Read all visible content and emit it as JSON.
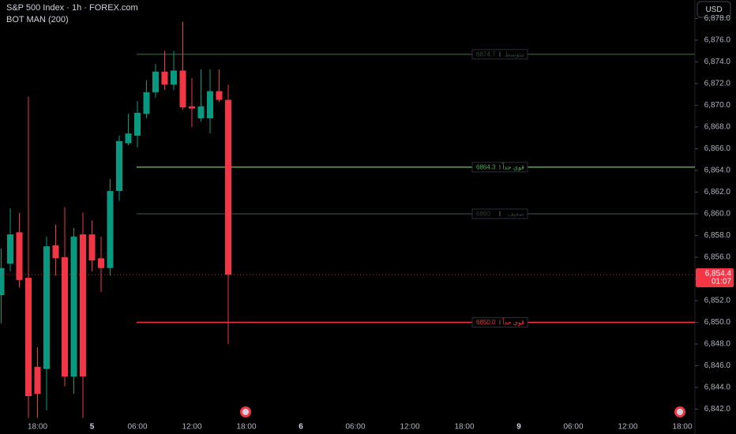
{
  "chart_data": {
    "type": "candlestick",
    "title": "S&P 500 Index · 1h · FOREX.com",
    "subtitle": "BOT MAN (200)",
    "currency": "USD",
    "up_color": "#089981",
    "down_color": "#f23645",
    "categories": [
      null,
      null,
      null,
      null,
      "18:00",
      null,
      null,
      null,
      null,
      null,
      "5",
      null,
      null,
      null,
      null,
      "06:00",
      null,
      null,
      null,
      null,
      null,
      "12:00",
      null,
      null,
      null,
      null,
      null,
      "18:00",
      null,
      null,
      null,
      null,
      null,
      "6",
      null,
      null,
      null,
      null,
      null,
      "06:00",
      null,
      null,
      null,
      null,
      null,
      "12:00",
      null,
      null,
      null,
      null,
      null,
      "18:00",
      null,
      null,
      null,
      null,
      null,
      "9",
      null,
      null,
      null,
      null,
      null,
      "06:00",
      null,
      null,
      null,
      null,
      null,
      "12:00",
      null,
      null,
      null,
      null,
      null,
      "18:00"
    ],
    "open": [
      6852.5,
      6855.4,
      6858.3,
      6854.1,
      6845.9,
      6845.7,
      6857.1,
      6856.0,
      6845.0,
      6858.1,
      6858.1,
      6855.9,
      6855.0,
      6862.1,
      6866.5,
      6867.2,
      6869.2,
      6871.2,
      6873.1,
      6871.9,
      6873.2,
      6869.9,
      6868.8,
      6868.8,
      6871.3,
      6870.5,
      null,
      null,
      null,
      null,
      null,
      null,
      null,
      null,
      null,
      null,
      null,
      null,
      null,
      null,
      null,
      null,
      null,
      null,
      null,
      null,
      null,
      null,
      null,
      null,
      null,
      null,
      null,
      null,
      null,
      null,
      null,
      null,
      null,
      null,
      null,
      null,
      null,
      null,
      null,
      null,
      null,
      null,
      null,
      null,
      null,
      null,
      null,
      null,
      null,
      null
    ],
    "high": [
      6856.8,
      6860.5,
      6860.1,
      6870.8,
      6847.7,
      6857.9,
      6859.0,
      6860.6,
      6858.7,
      6860.1,
      6859.4,
      6857.9,
      6863.2,
      6867.2,
      6869.2,
      6870.4,
      6872.3,
      6873.8,
      6875.0,
      6875.0,
      6877.7,
      6872.5,
      6873.3,
      6873.3,
      6873.3,
      6871.9,
      null,
      null,
      null,
      null,
      null,
      null,
      null,
      null,
      null,
      null,
      null,
      null,
      null,
      null,
      null,
      null,
      null,
      null,
      null,
      null,
      null,
      null,
      null,
      null,
      null,
      null,
      null,
      null,
      null,
      null,
      null,
      null,
      null,
      null,
      null,
      null,
      null,
      null,
      null,
      null,
      null,
      null,
      null,
      null,
      null,
      null,
      null,
      null,
      null,
      null
    ],
    "low": [
      6849.9,
      6854.7,
      6853.2,
      6841.2,
      6841.2,
      6841.9,
      6854.3,
      6844.1,
      6843.4,
      6841.2,
      6854.7,
      6852.8,
      6854.3,
      6861.2,
      6866.3,
      6866.1,
      6868.8,
      6870.7,
      6871.4,
      6871.4,
      6869.6,
      6868.0,
      6868.5,
      6867.4,
      6870.3,
      6848.0,
      null,
      null,
      null,
      null,
      null,
      null,
      null,
      null,
      null,
      null,
      null,
      null,
      null,
      null,
      null,
      null,
      null,
      null,
      null,
      null,
      null,
      null,
      null,
      null,
      null,
      null,
      null,
      null,
      null,
      null,
      null,
      null,
      null,
      null,
      null,
      null,
      null,
      null,
      null,
      null,
      null,
      null,
      null,
      null,
      null,
      null,
      null,
      null,
      null,
      null
    ],
    "close": [
      6855.0,
      6858.1,
      6853.9,
      6843.2,
      6843.4,
      6857.0,
      6855.9,
      6845.0,
      6857.9,
      6845.0,
      6855.7,
      6855.0,
      6862.1,
      6866.7,
      6867.4,
      6869.3,
      6871.2,
      6873.1,
      6871.9,
      6873.2,
      6869.8,
      6869.7,
      6869.9,
      6871.3,
      6870.5,
      6854.4,
      null,
      null,
      null,
      null,
      null,
      null,
      null,
      null,
      null,
      null,
      null,
      null,
      null,
      null,
      null,
      null,
      null,
      null,
      null,
      null,
      null,
      null,
      null,
      null,
      null,
      null,
      null,
      null,
      null,
      null,
      null,
      null,
      null,
      null,
      null,
      null,
      null,
      null,
      null,
      null,
      null,
      null,
      null,
      null,
      null,
      null,
      null,
      null,
      null,
      null
    ],
    "ylim": [
      6840.8,
      6879.7
    ],
    "yticks": [
      {
        "value": 6842,
        "label": "6,842.0"
      },
      {
        "value": 6844,
        "label": "6,844.0"
      },
      {
        "value": 6846,
        "label": "6,846.0"
      },
      {
        "value": 6848,
        "label": "6,848.0"
      },
      {
        "value": 6850,
        "label": "6,850.0"
      },
      {
        "value": 6852,
        "label": "6,852.0"
      },
      {
        "value": 6854,
        "label": "6,854.0"
      },
      {
        "value": 6856,
        "label": "6,856.0"
      },
      {
        "value": 6858,
        "label": "6,858.0"
      },
      {
        "value": 6860,
        "label": "6,860.0"
      },
      {
        "value": 6862,
        "label": "6,862.0"
      },
      {
        "value": 6864,
        "label": "6,864.0"
      },
      {
        "value": 6866,
        "label": "6,866.0"
      },
      {
        "value": 6868,
        "label": "6,868.0"
      },
      {
        "value": 6870,
        "label": "6,870.0"
      },
      {
        "value": 6872,
        "label": "6,872.0"
      },
      {
        "value": 6874,
        "label": "6,874.0"
      },
      {
        "value": 6876,
        "label": "6,876.0"
      },
      {
        "value": 6878,
        "label": "6,878.0"
      }
    ],
    "levels": [
      {
        "price": 6874.7,
        "name": "متوسط",
        "color": "#2e4a36"
      },
      {
        "price": 6864.3,
        "name": "قوي جداً",
        "color": "#4caf50"
      },
      {
        "price": 6860,
        "name": "ضعيف",
        "color": "#2f3a33"
      },
      {
        "price": {
          "value": 6850,
          "label": "6850.0"
        },
        "name": "قوي جداً",
        "color": "#f23645"
      }
    ],
    "last_price": {
      "value": 6854.4,
      "label": "6,854.4"
    },
    "countdown": "01:07"
  }
}
